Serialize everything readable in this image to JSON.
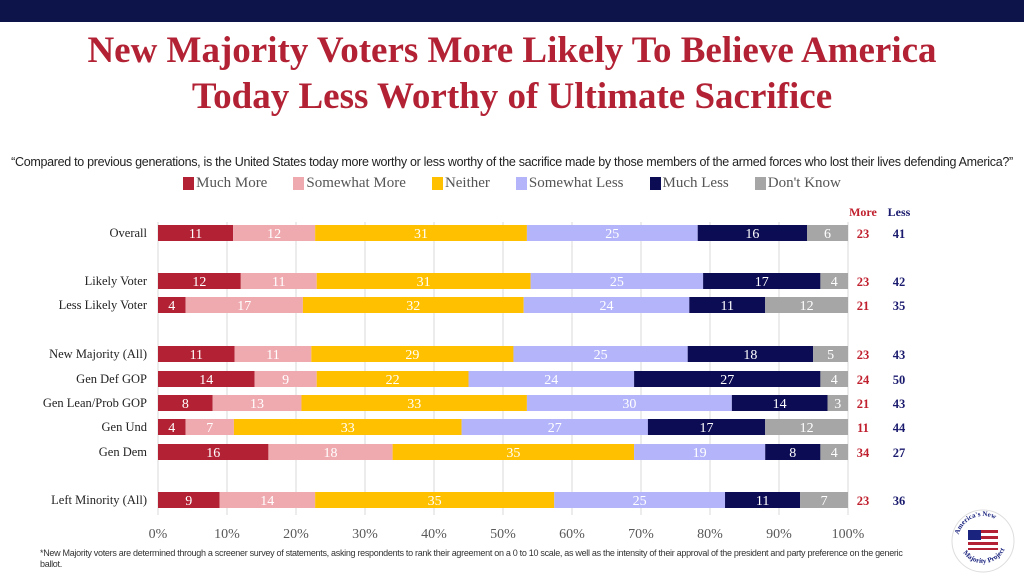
{
  "title_lines": [
    "New Majority Voters More Likely To Believe America",
    "Today Less Worthy of Ultimate Sacrifice"
  ],
  "question": "“Compared to previous generations, is the United States today more worthy or less worthy of the sacrifice made by those members of the armed forces who lost their lives defending America?”",
  "footnote": "*New Majority voters are determined through a screener survey of statements, asking respondents to rank their agreement on a 0 to 10 scale, as well as the intensity  of their approval of the president and party preference on the generic ballot.",
  "logo_text": "America's New Majority Project",
  "chart_data": {
    "type": "bar",
    "orientation": "horizontal-stacked-100",
    "series": [
      {
        "name": "Much More",
        "color": "#b22234",
        "label_color": "#ffffff"
      },
      {
        "name": "Somewhat More",
        "color": "#efaab0",
        "label_color": "#ffffff"
      },
      {
        "name": "Neither",
        "color": "#ffc000",
        "label_color": "#ffffff"
      },
      {
        "name": "Somewhat Less",
        "color": "#b4b4fa",
        "label_color": "#ffffff"
      },
      {
        "name": "Much Less",
        "color": "#0c0c55",
        "label_color": "#ffffff"
      },
      {
        "name": "Don't Know",
        "color": "#a6a6a6",
        "label_color": "#ffffff"
      }
    ],
    "summary_headers": {
      "more": "More",
      "less": "Less",
      "more_color": "#c0202e",
      "less_color": "#1a1a6e"
    },
    "rows": [
      {
        "label": "Overall",
        "values": [
          11,
          12,
          31,
          25,
          16,
          6
        ],
        "more": 23,
        "less": 41,
        "group": 0
      },
      {
        "label": "Likely Voter",
        "values": [
          12,
          11,
          31,
          25,
          17,
          4
        ],
        "more": 23,
        "less": 42,
        "group": 1
      },
      {
        "label": "Less Likely Voter",
        "values": [
          4,
          17,
          32,
          24,
          11,
          12
        ],
        "more": 21,
        "less": 35,
        "group": 1
      },
      {
        "label": "New Majority (All)",
        "values": [
          11,
          11,
          29,
          25,
          18,
          5
        ],
        "more": 23,
        "less": 43,
        "group": 2
      },
      {
        "label": "Gen Def GOP",
        "values": [
          14,
          9,
          22,
          24,
          27,
          4
        ],
        "more": 24,
        "less": 50,
        "group": 2
      },
      {
        "label": "Gen Lean/Prob GOP",
        "values": [
          8,
          13,
          33,
          30,
          14,
          3
        ],
        "more": 21,
        "less": 43,
        "group": 2
      },
      {
        "label": "Gen Und",
        "values": [
          4,
          7,
          33,
          27,
          17,
          12
        ],
        "more": 11,
        "less": 44,
        "group": 2
      },
      {
        "label": "Gen Dem",
        "values": [
          16,
          18,
          35,
          19,
          8,
          4
        ],
        "more": 34,
        "less": 27,
        "group": 2
      },
      {
        "label": "Left Minority (All)",
        "values": [
          9,
          14,
          35,
          25,
          11,
          7
        ],
        "more": 23,
        "less": 36,
        "group": 3
      }
    ],
    "xlim": [
      0,
      100
    ],
    "xticks": [
      "0%",
      "10%",
      "20%",
      "30%",
      "40%",
      "50%",
      "60%",
      "70%",
      "80%",
      "90%",
      "100%"
    ],
    "legend_position": "top"
  }
}
